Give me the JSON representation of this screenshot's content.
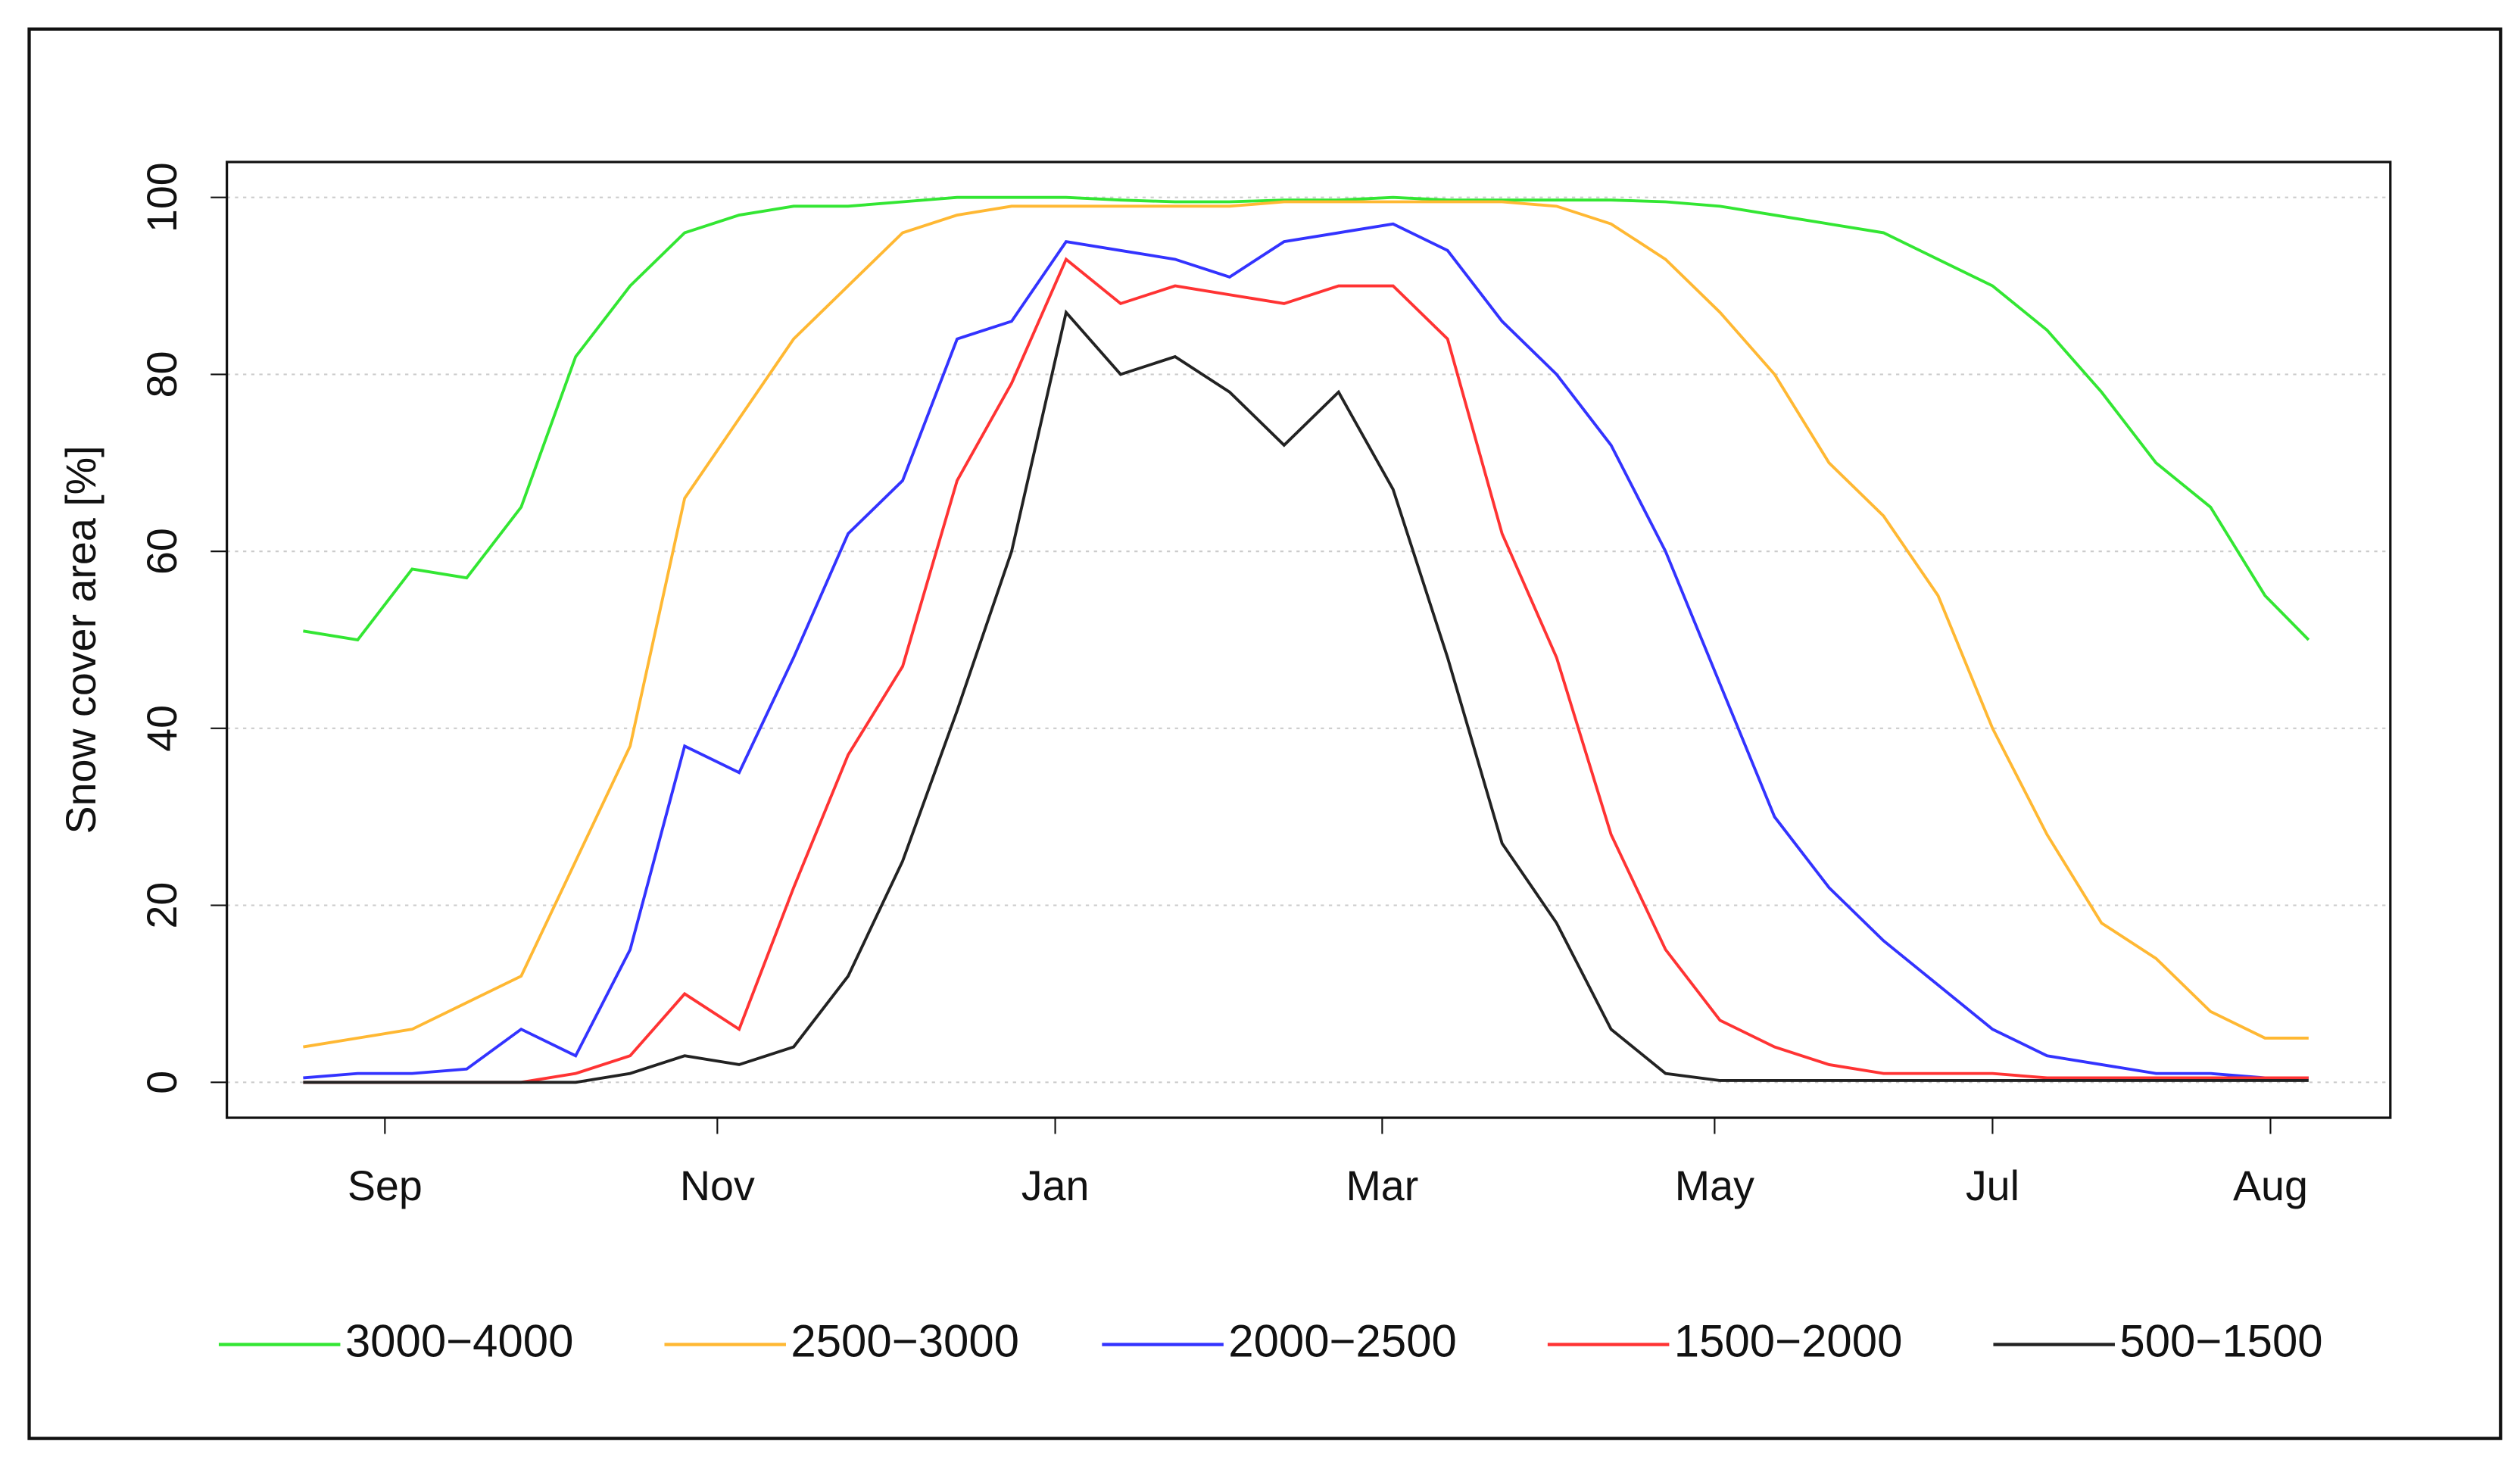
{
  "chart_data": {
    "type": "line",
    "ylabel": "Snow cover area [%]",
    "x": [
      -15,
      -5,
      5,
      15,
      25,
      35,
      45,
      55,
      65,
      75,
      85,
      95,
      105,
      115,
      125,
      135,
      145,
      155,
      165,
      175,
      185,
      195,
      205,
      215,
      225,
      235,
      245,
      255,
      265,
      275,
      285,
      295,
      305,
      315,
      325,
      335,
      345,
      353
    ],
    "xlim": [
      -29,
      368
    ],
    "xticks": [
      {
        "value": 0,
        "label": "Sep"
      },
      {
        "value": 61,
        "label": "Nov"
      },
      {
        "value": 123,
        "label": "Jan"
      },
      {
        "value": 183,
        "label": "Mar"
      },
      {
        "value": 244,
        "label": "May"
      },
      {
        "value": 295,
        "label": "Jul"
      },
      {
        "value": 346,
        "label": "Aug"
      }
    ],
    "ylim": [
      -4,
      104
    ],
    "yticks": [
      0,
      20,
      40,
      60,
      80,
      100
    ],
    "grid": true,
    "legend": "bottom",
    "series": [
      {
        "name": "3000−4000",
        "color": "#33e633",
        "values": [
          51,
          50,
          58,
          57,
          65,
          82,
          90,
          96,
          98,
          99,
          99,
          99.5,
          100,
          100,
          100,
          99.7,
          99.5,
          99.5,
          99.7,
          99.7,
          100,
          99.7,
          99.7,
          99.7,
          99.7,
          99.5,
          99,
          98,
          97,
          96,
          93,
          90,
          85,
          78,
          70,
          65,
          55,
          50
        ]
      },
      {
        "name": "2500−3000",
        "color": "#ffb833",
        "values": [
          4,
          5,
          6,
          9,
          12,
          25,
          38,
          66,
          75,
          84,
          90,
          96,
          98,
          99,
          99,
          99,
          99,
          99,
          99.5,
          99.5,
          99.5,
          99.5,
          99.5,
          99,
          97,
          93,
          87,
          80,
          70,
          64,
          55,
          40,
          28,
          18,
          14,
          8,
          5,
          5
        ]
      },
      {
        "name": "2000−2500",
        "color": "#3333ff",
        "values": [
          0.5,
          1,
          1,
          1.5,
          6,
          3,
          15,
          38,
          35,
          48,
          62,
          68,
          84,
          86,
          95,
          94,
          93,
          91,
          95,
          96,
          97,
          94,
          86,
          80,
          72,
          60,
          45,
          30,
          22,
          16,
          11,
          6,
          3,
          2,
          1,
          1,
          0.5,
          0.5
        ]
      },
      {
        "name": "1500−2000",
        "color": "#ff3333",
        "values": [
          0,
          0,
          0,
          0,
          0,
          1,
          3,
          10,
          6,
          22,
          37,
          47,
          68,
          79,
          93,
          88,
          90,
          89,
          88,
          90,
          90,
          84,
          62,
          48,
          28,
          15,
          7,
          4,
          2,
          1,
          1,
          1,
          0.5,
          0.5,
          0.5,
          0.5,
          0.5,
          0.5
        ]
      },
      {
        "name": "500−1500",
        "color": "#222222",
        "values": [
          0,
          0,
          0,
          0,
          0,
          0,
          1,
          3,
          2,
          4,
          12,
          25,
          42,
          60,
          87,
          80,
          82,
          78,
          72,
          78,
          67,
          48,
          27,
          18,
          6,
          1,
          0.2,
          0.2,
          0.2,
          0.2,
          0.2,
          0.2,
          0.2,
          0.2,
          0.2,
          0.2,
          0.2,
          0.2
        ]
      }
    ]
  }
}
